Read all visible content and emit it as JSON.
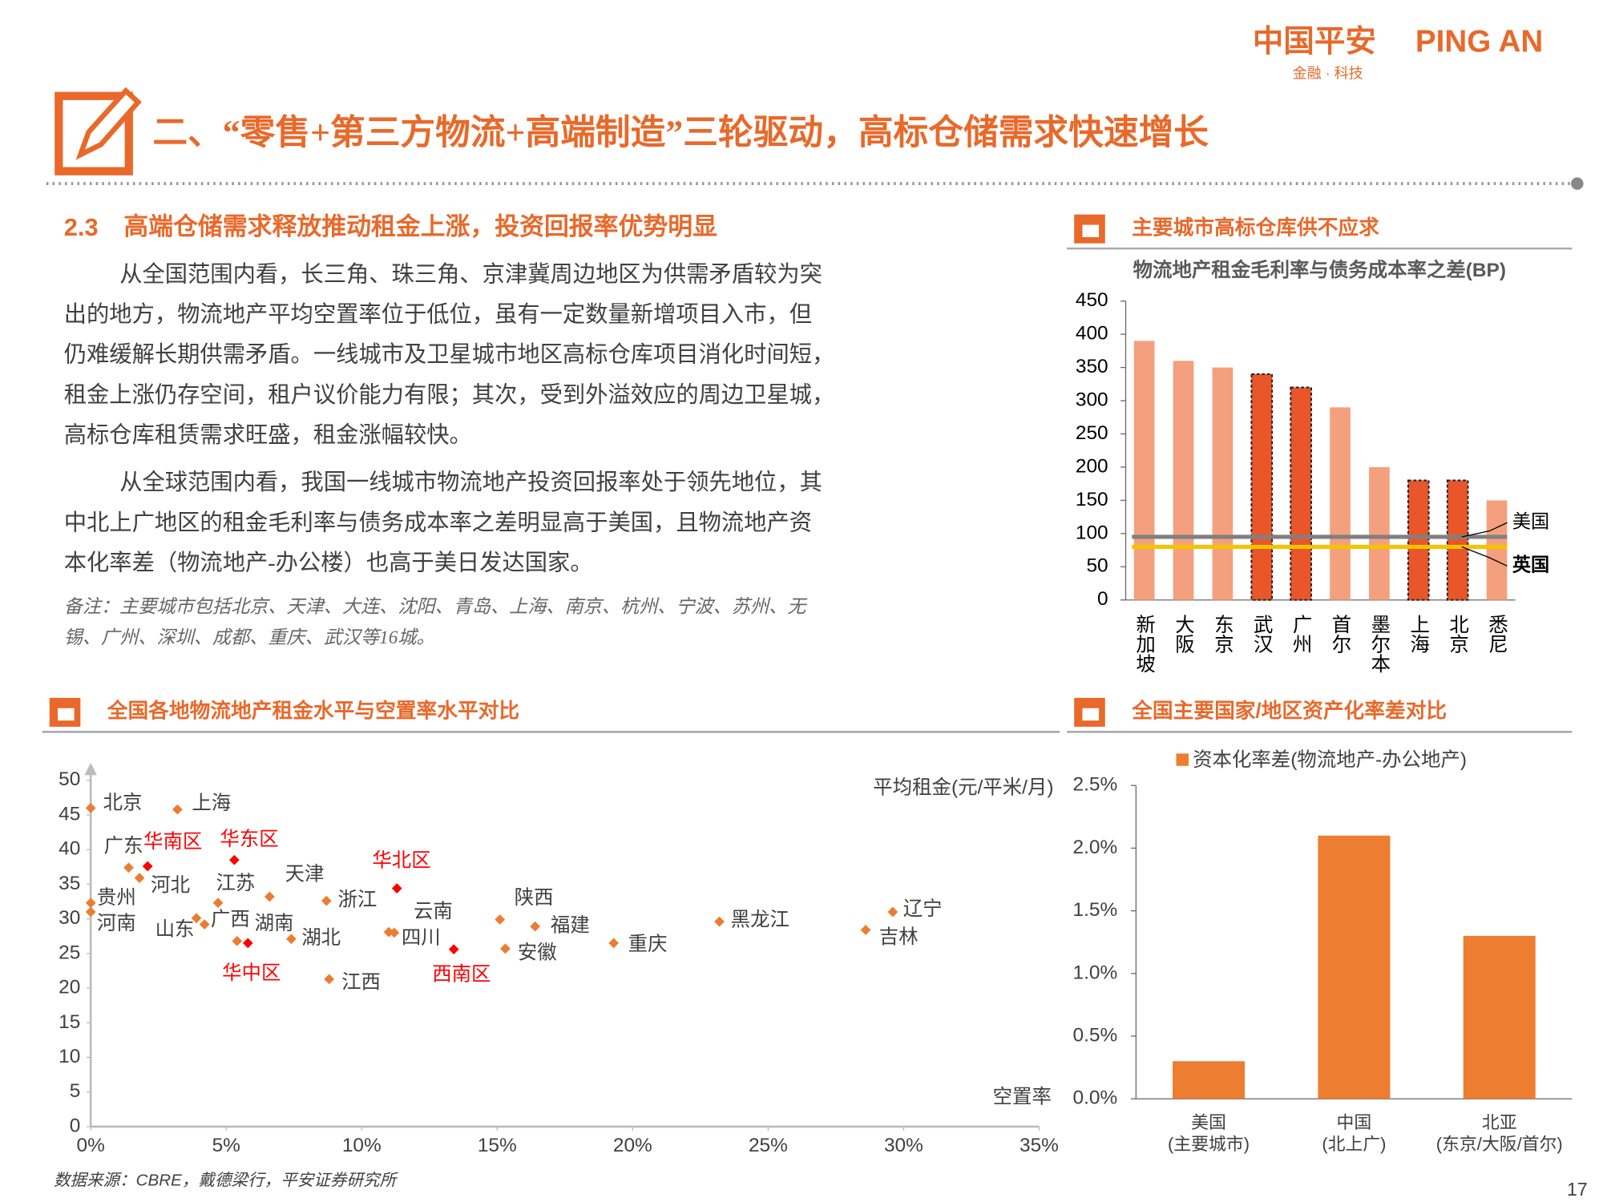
{
  "header": {
    "brand": "中国平安",
    "brand_en": "PING AN",
    "slogan": "金融 · 科技",
    "title": "二、“零售+第三方物流+高端制造”三轮驱动，高标仓储需求快速增长"
  },
  "section": {
    "number": "2.3",
    "title": "高端仓储需求释放推动租金上涨，投资回报率优势明显"
  },
  "paragraphs": [
    [
      "从全国范围内看，长三角、珠三角、京津冀周边地区为供需矛盾较为突",
      "出的地方，物流地产平均空置率位于低位，虽有一定数量新增项目入市，但",
      "仍难缓解长期供需矛盾。一线城市及卫星城市地区高标仓库项目消化时间短，",
      "租金上涨仍存空间，租户议价能力有限；其次，受到外溢效应的周边卫星城，",
      "高标仓库租赁需求旺盛，租金涨幅较快。"
    ],
    [
      "从全球范围内看，我国一线城市物流地产投资回报率处于领先地位，其",
      "中北上广地区的租金毛利率与债务成本率之差明显高于美国，且物流地产资",
      "本化率差（物流地产-办公楼）也高于美日发达国家。"
    ]
  ],
  "note": [
    "备注：主要城市包括北京、天津、大连、沈阳、青岛、上海、南京、杭州、宁波、苏州、无",
    "锡、广州、深圳、成都、重庆、武汉等16城。"
  ],
  "source": "数据来源：CBRE，戴德梁行，平安证券研究所",
  "page": "17",
  "chart_data": [
    {
      "type": "bar",
      "heading": "主要城市高标仓库供不应求",
      "title": "物流地产租金毛利率与债务成本率之差(BP)",
      "categories": [
        "新加坡",
        "大阪",
        "东京",
        "武汉",
        "广州",
        "首尔",
        "墨尔本",
        "上海",
        "北京",
        "悉尼"
      ],
      "values": [
        390,
        360,
        350,
        340,
        320,
        290,
        200,
        180,
        180,
        150
      ],
      "colors": [
        "#f4a07e",
        "#f4a07e",
        "#f4a07e",
        "#e9562a",
        "#e9562a",
        "#f4a07e",
        "#f4a07e",
        "#e9562a",
        "#e9562a",
        "#f4a07e"
      ],
      "outlined": [
        false,
        false,
        false,
        true,
        true,
        false,
        false,
        true,
        true,
        false
      ],
      "reference_lines": [
        {
          "name": "美国",
          "value": 95,
          "color": "#808080"
        },
        {
          "name": "英国",
          "value": 80,
          "color": "#f5c400"
        }
      ],
      "ylim": [
        0,
        450
      ],
      "yticks": [
        0,
        50,
        100,
        150,
        200,
        250,
        300,
        350,
        400,
        450
      ]
    },
    {
      "type": "scatter",
      "heading": "全国各地物流地产租金水平与空置率水平对比",
      "y_label": "平均租金(元/平米/月)",
      "x_label": "空置率",
      "labels": [
        "北京",
        "上海",
        "广东",
        "华南区",
        "河北",
        "华东区",
        "贵州",
        "河南",
        "江苏",
        "天津",
        "浙江",
        "华北区",
        "云南",
        "四川",
        "陕西",
        "福建",
        "安徽",
        "西南区",
        "重庆",
        "黑龙江",
        "辽宁",
        "吉林",
        "山东",
        "广西",
        "湖南",
        "华中区",
        "湖北",
        "江西"
      ],
      "x": [
        0,
        3.2,
        1.4,
        2.1,
        1.8,
        5.3,
        0,
        0,
        4.7,
        6.6,
        8.7,
        11.3,
        11.0,
        11.2,
        15.1,
        16.4,
        15.3,
        13.4,
        19.3,
        23.2,
        29.6,
        28.6,
        3.9,
        4.2,
        5.4,
        5.8,
        7.4,
        8.8
      ],
      "y": [
        46.0,
        45.8,
        37.4,
        37.6,
        35.9,
        38.5,
        32.3,
        31.0,
        32.3,
        33.2,
        32.6,
        34.4,
        28.1,
        28.0,
        29.9,
        28.9,
        25.7,
        25.6,
        26.5,
        29.6,
        31.0,
        28.4,
        30.1,
        29.2,
        26.8,
        26.5,
        27.1,
        21.3
      ],
      "colors": [
        "#ec7c30",
        "#ec7c30",
        "#ec7c30",
        "#ff0000",
        "#ec7c30",
        "#ff0000",
        "#ec7c30",
        "#ec7c30",
        "#ec7c30",
        "#ec7c30",
        "#ec7c30",
        "#ff0000",
        "#ec7c30",
        "#ec7c30",
        "#ec7c30",
        "#ec7c30",
        "#ec7c30",
        "#ff0000",
        "#ec7c30",
        "#ec7c30",
        "#ec7c30",
        "#ec7c30",
        "#ec7c30",
        "#ec7c30",
        "#ec7c30",
        "#ff0000",
        "#ec7c30",
        "#ec7c30"
      ],
      "xlim": [
        0,
        35
      ],
      "xticks": [
        {
          "value": 0,
          "label": "0%"
        },
        {
          "value": 5,
          "label": "5%"
        },
        {
          "value": 10,
          "label": "10%"
        },
        {
          "value": 15,
          "label": "15%"
        },
        {
          "value": 20,
          "label": "20%"
        },
        {
          "value": 25,
          "label": "25%"
        },
        {
          "value": 30,
          "label": "30%"
        },
        {
          "value": 35,
          "label": "35%"
        }
      ],
      "ylim": [
        0,
        50
      ],
      "yticks": [
        0,
        5,
        10,
        15,
        20,
        25,
        30,
        35,
        40,
        45,
        50
      ]
    },
    {
      "type": "bar",
      "heading": "全国主要国家/地区资产化率差对比",
      "series": [
        {
          "name": "资本化率差(物流地产-办公地产)",
          "color": "#ed7d31",
          "values": [
            0.3,
            2.1,
            1.3
          ]
        }
      ],
      "categories": [
        [
          "美国",
          "(主要城市)"
        ],
        [
          "中国",
          "(北上广)"
        ],
        [
          "北亚",
          "(东京/大阪/首尔)"
        ]
      ],
      "ylim": [
        0,
        2.5
      ],
      "yticks": [
        {
          "value": 0,
          "label": "0.0%"
        },
        {
          "value": 0.5,
          "label": "0.5%"
        },
        {
          "value": 1,
          "label": "1.0%"
        },
        {
          "value": 1.5,
          "label": "1.5%"
        },
        {
          "value": 2,
          "label": "2.0%"
        },
        {
          "value": 2.5,
          "label": "2.5%"
        }
      ]
    }
  ]
}
